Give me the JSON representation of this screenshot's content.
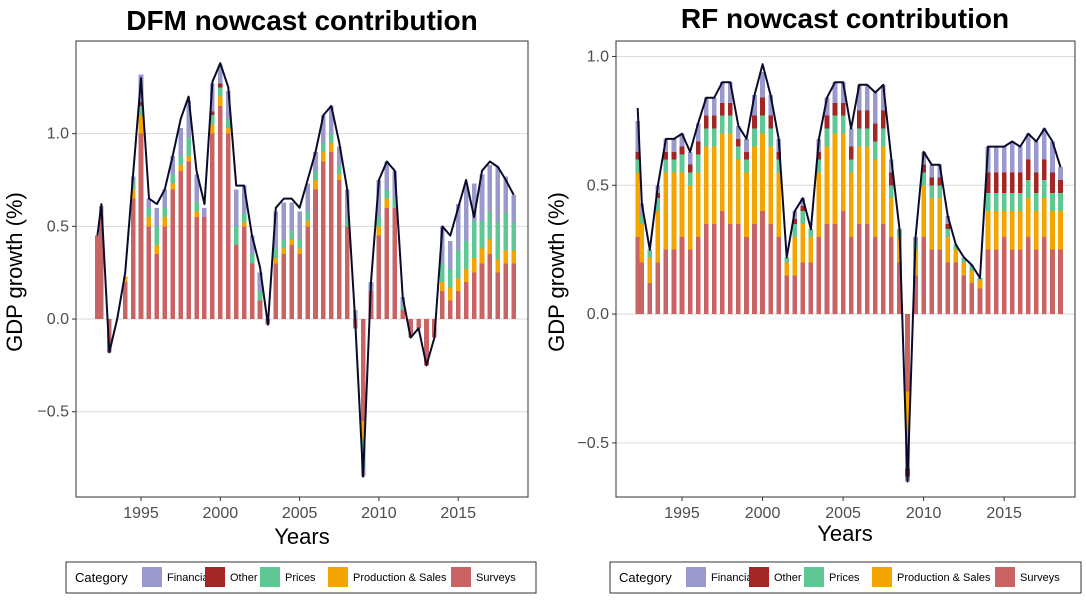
{
  "chart_data": [
    {
      "type": "area",
      "stacked": true,
      "title": "DFM nowcast contribution",
      "xlabel": "Years",
      "ylabel": "GDP growth (%)",
      "xlim": [
        1990.9,
        2019.4
      ],
      "ylim": [
        -0.96,
        1.5
      ],
      "xticks": [
        1995,
        2000,
        2005,
        2010,
        2015
      ],
      "xtick_labels": [
        "1995",
        "2000",
        "2005",
        "2010",
        "2015"
      ],
      "yticks": [
        -0.5,
        0.0,
        0.5,
        1.0
      ],
      "ytick_labels": [
        "−0.5",
        "0.0",
        "0.5",
        "1.0"
      ],
      "grid": true,
      "legend": "bottom",
      "x": [
        1992.25,
        1992.5,
        1993.0,
        1993.5,
        1994.0,
        1994.5,
        1995.0,
        1995.5,
        1996.0,
        1996.5,
        1997.0,
        1997.5,
        1998.0,
        1998.5,
        1999.0,
        1999.5,
        2000.0,
        2000.5,
        2001.0,
        2001.5,
        2002.0,
        2002.5,
        2003.0,
        2003.5,
        2004.0,
        2004.5,
        2005.0,
        2005.5,
        2006.0,
        2006.5,
        2007.0,
        2007.5,
        2008.0,
        2008.5,
        2009.0,
        2009.5,
        2010.0,
        2010.5,
        2011.0,
        2011.5,
        2012.0,
        2012.5,
        2013.0,
        2013.5,
        2014.0,
        2014.5,
        2015.0,
        2015.5,
        2016.0,
        2016.5,
        2017.0,
        2017.5,
        2018.0,
        2018.5
      ],
      "series": [
        {
          "name": "Surveys",
          "color": "#c86464",
          "values": [
            0.45,
            0.55,
            -0.18,
            0.0,
            0.2,
            0.65,
            1.0,
            0.5,
            0.35,
            0.5,
            0.7,
            0.8,
            0.85,
            0.55,
            0.55,
            1.0,
            1.15,
            1.0,
            0.4,
            0.5,
            0.3,
            0.1,
            -0.03,
            0.3,
            0.35,
            0.4,
            0.35,
            0.5,
            0.7,
            0.85,
            0.9,
            0.75,
            0.5,
            -0.05,
            -0.55,
            0.15,
            0.45,
            0.6,
            0.6,
            0.05,
            -0.1,
            -0.05,
            -0.25,
            -0.1,
            0.15,
            0.1,
            0.15,
            0.2,
            0.25,
            0.3,
            0.35,
            0.25,
            0.3,
            0.3
          ]
        },
        {
          "name": "Production & Sales",
          "color": "#f5a500",
          "values": [
            0.0,
            0.03,
            0.0,
            0.0,
            0.03,
            0.05,
            0.1,
            0.05,
            0.05,
            0.05,
            0.03,
            0.03,
            0.03,
            0.03,
            0.0,
            0.05,
            0.05,
            0.03,
            0.0,
            0.02,
            0.0,
            0.0,
            0.0,
            0.03,
            0.03,
            0.03,
            0.03,
            0.03,
            0.05,
            0.05,
            0.05,
            0.03,
            0.0,
            0.0,
            -0.1,
            0.0,
            0.05,
            0.05,
            0.0,
            0.0,
            0.0,
            0.0,
            0.0,
            0.0,
            0.05,
            0.07,
            0.07,
            0.07,
            0.08,
            0.08,
            0.08,
            0.07,
            0.07,
            0.07
          ]
        },
        {
          "name": "Prices",
          "color": "#5dc893",
          "values": [
            0.0,
            0.0,
            0.0,
            0.0,
            0.0,
            0.05,
            0.05,
            0.05,
            0.1,
            0.05,
            0.05,
            0.05,
            0.1,
            0.05,
            0.0,
            0.05,
            0.05,
            0.05,
            0.1,
            0.05,
            0.05,
            0.05,
            0.0,
            0.05,
            0.05,
            0.05,
            0.05,
            0.05,
            0.05,
            0.05,
            0.05,
            0.05,
            0.05,
            0.0,
            -0.15,
            0.0,
            0.05,
            0.05,
            0.05,
            0.02,
            0.0,
            0.0,
            0.0,
            0.0,
            0.1,
            0.1,
            0.15,
            0.15,
            0.2,
            0.15,
            0.15,
            0.2,
            0.2,
            0.15
          ]
        },
        {
          "name": "Other",
          "color": "#a32626",
          "values": [
            0.0,
            0.0,
            0.0,
            0.0,
            0.0,
            0.0,
            0.02,
            0.0,
            0.0,
            0.0,
            0.0,
            0.0,
            0.0,
            0.0,
            0.0,
            0.02,
            0.02,
            0.0,
            0.0,
            0.0,
            0.0,
            0.0,
            0.0,
            0.0,
            0.0,
            0.0,
            0.0,
            0.0,
            0.0,
            0.0,
            0.0,
            0.0,
            0.0,
            0.0,
            0.0,
            0.0,
            0.0,
            0.0,
            0.0,
            0.0,
            0.0,
            0.0,
            0.0,
            0.0,
            0.0,
            0.0,
            0.0,
            0.0,
            0.0,
            0.0,
            0.0,
            0.0,
            0.0,
            0.0
          ]
        },
        {
          "name": "Financial",
          "color": "#9999cc",
          "values": [
            0.0,
            0.03,
            0.0,
            0.0,
            0.0,
            0.02,
            0.15,
            0.05,
            0.1,
            0.1,
            0.1,
            0.15,
            0.2,
            0.15,
            0.05,
            0.15,
            0.1,
            0.15,
            0.2,
            0.15,
            0.1,
            0.1,
            0.0,
            0.2,
            0.2,
            0.15,
            0.15,
            0.15,
            0.1,
            0.15,
            0.15,
            0.1,
            0.15,
            0.05,
            -0.05,
            0.05,
            0.2,
            0.15,
            0.15,
            0.05,
            0.0,
            0.0,
            0.0,
            0.0,
            0.2,
            0.15,
            0.25,
            0.3,
            0.2,
            0.25,
            0.25,
            0.3,
            0.2,
            0.15
          ]
        }
      ],
      "total_line": [
        0.45,
        0.62,
        -0.18,
        0.0,
        0.25,
        0.78,
        1.3,
        0.65,
        0.62,
        0.7,
        0.88,
        1.08,
        1.2,
        0.8,
        0.62,
        1.28,
        1.38,
        1.25,
        0.72,
        0.72,
        0.45,
        0.28,
        -0.03,
        0.6,
        0.65,
        0.65,
        0.6,
        0.75,
        0.9,
        1.1,
        1.15,
        0.95,
        0.7,
        0.0,
        -0.85,
        0.2,
        0.75,
        0.85,
        0.8,
        0.12,
        -0.1,
        -0.05,
        -0.25,
        -0.1,
        0.5,
        0.45,
        0.6,
        0.75,
        0.55,
        0.8,
        0.85,
        0.82,
        0.75,
        0.67
      ]
    },
    {
      "type": "area",
      "stacked": true,
      "title": "RF nowcast contribution",
      "xlabel": "Years",
      "ylabel": "GDP growth (%)",
      "xlim": [
        1990.9,
        2019.4
      ],
      "ylim": [
        -0.71,
        1.06
      ],
      "xticks": [
        1995,
        2000,
        2005,
        2010,
        2015
      ],
      "xtick_labels": [
        "1995",
        "2000",
        "2005",
        "2010",
        "2015"
      ],
      "yticks": [
        -0.5,
        0.0,
        0.5,
        1.0
      ],
      "ytick_labels": [
        "−0.5",
        "0.0",
        "0.5",
        "1.0"
      ],
      "grid": true,
      "legend": "bottom",
      "x": [
        1992.25,
        1992.5,
        1993.0,
        1993.5,
        1994.0,
        1994.5,
        1995.0,
        1995.5,
        1996.0,
        1996.5,
        1997.0,
        1997.5,
        1998.0,
        1998.5,
        1999.0,
        1999.5,
        2000.0,
        2000.5,
        2001.0,
        2001.5,
        2002.0,
        2002.5,
        2003.0,
        2003.5,
        2004.0,
        2004.5,
        2005.0,
        2005.5,
        2006.0,
        2006.5,
        2007.0,
        2007.5,
        2008.0,
        2008.5,
        2009.0,
        2009.5,
        2010.0,
        2010.5,
        2011.0,
        2011.5,
        2012.0,
        2012.5,
        2013.0,
        2013.5,
        2014.0,
        2014.5,
        2015.0,
        2015.5,
        2016.0,
        2016.5,
        2017.0,
        2017.5,
        2018.0,
        2018.5
      ],
      "series": [
        {
          "name": "Surveys",
          "color": "#c86464",
          "values": [
            0.3,
            0.2,
            0.12,
            0.2,
            0.25,
            0.25,
            0.3,
            0.25,
            0.3,
            0.35,
            0.35,
            0.4,
            0.35,
            0.35,
            0.3,
            0.35,
            0.4,
            0.35,
            0.3,
            0.15,
            0.15,
            0.2,
            0.2,
            0.3,
            0.35,
            0.35,
            0.4,
            0.3,
            0.35,
            0.35,
            0.3,
            0.35,
            0.3,
            0.2,
            -0.3,
            0.15,
            0.3,
            0.25,
            0.25,
            0.2,
            0.2,
            0.15,
            0.12,
            0.1,
            0.25,
            0.25,
            0.3,
            0.25,
            0.25,
            0.3,
            0.25,
            0.3,
            0.25,
            0.25
          ]
        },
        {
          "name": "Production & Sales",
          "color": "#f5a500",
          "values": [
            0.25,
            0.15,
            0.1,
            0.2,
            0.3,
            0.3,
            0.25,
            0.25,
            0.25,
            0.3,
            0.3,
            0.3,
            0.35,
            0.25,
            0.25,
            0.3,
            0.3,
            0.3,
            0.25,
            0.05,
            0.15,
            0.15,
            0.1,
            0.25,
            0.3,
            0.35,
            0.3,
            0.25,
            0.3,
            0.3,
            0.3,
            0.3,
            0.15,
            0.1,
            -0.2,
            0.1,
            0.2,
            0.2,
            0.2,
            0.1,
            0.05,
            0.05,
            0.05,
            0.03,
            0.15,
            0.15,
            0.1,
            0.15,
            0.15,
            0.15,
            0.15,
            0.15,
            0.15,
            0.15
          ]
        },
        {
          "name": "Prices",
          "color": "#5dc893",
          "values": [
            0.05,
            0.03,
            0.03,
            0.05,
            0.05,
            0.05,
            0.07,
            0.05,
            0.07,
            0.07,
            0.07,
            0.07,
            0.07,
            0.05,
            0.05,
            0.07,
            0.07,
            0.07,
            0.05,
            0.02,
            0.05,
            0.05,
            0.03,
            0.05,
            0.07,
            0.07,
            0.07,
            0.05,
            0.07,
            0.07,
            0.07,
            0.07,
            0.05,
            0.03,
            -0.1,
            0.03,
            0.05,
            0.05,
            0.05,
            0.03,
            0.02,
            0.02,
            0.02,
            0.01,
            0.07,
            0.07,
            0.07,
            0.07,
            0.07,
            0.07,
            0.07,
            0.07,
            0.07,
            0.07
          ]
        },
        {
          "name": "Other",
          "color": "#a32626",
          "values": [
            0.03,
            0.0,
            0.0,
            0.02,
            0.03,
            0.03,
            0.03,
            0.03,
            0.05,
            0.05,
            0.05,
            0.05,
            0.05,
            0.03,
            0.03,
            0.05,
            0.07,
            0.05,
            0.03,
            0.0,
            0.02,
            0.02,
            0.0,
            0.03,
            0.05,
            0.05,
            0.05,
            0.05,
            0.07,
            0.07,
            0.07,
            0.07,
            0.05,
            0.0,
            -0.03,
            0.0,
            0.03,
            0.03,
            0.03,
            0.02,
            0.0,
            0.0,
            0.0,
            0.0,
            0.08,
            0.08,
            0.08,
            0.08,
            0.08,
            0.08,
            0.08,
            0.08,
            0.08,
            0.05
          ]
        },
        {
          "name": "Financial",
          "color": "#9999cc",
          "values": [
            0.12,
            0.05,
            0.0,
            0.03,
            0.05,
            0.05,
            0.05,
            0.05,
            0.07,
            0.07,
            0.07,
            0.08,
            0.08,
            0.05,
            0.05,
            0.08,
            0.1,
            0.08,
            0.05,
            0.0,
            0.03,
            0.03,
            0.0,
            0.05,
            0.07,
            0.08,
            0.08,
            0.07,
            0.1,
            0.1,
            0.12,
            0.1,
            0.05,
            0.0,
            -0.02,
            0.02,
            0.05,
            0.05,
            0.05,
            0.03,
            0.0,
            0.0,
            0.0,
            0.0,
            0.1,
            0.1,
            0.1,
            0.12,
            0.1,
            0.1,
            0.12,
            0.12,
            0.12,
            0.05
          ]
        }
      ],
      "total_line": [
        0.8,
        0.43,
        0.25,
        0.5,
        0.68,
        0.68,
        0.7,
        0.63,
        0.74,
        0.84,
        0.84,
        0.9,
        0.9,
        0.73,
        0.68,
        0.85,
        0.97,
        0.85,
        0.68,
        0.22,
        0.4,
        0.45,
        0.33,
        0.68,
        0.84,
        0.9,
        0.9,
        0.72,
        0.89,
        0.89,
        0.86,
        0.89,
        0.6,
        0.33,
        -0.65,
        0.3,
        0.63,
        0.58,
        0.58,
        0.38,
        0.27,
        0.22,
        0.19,
        0.14,
        0.65,
        0.65,
        0.65,
        0.67,
        0.65,
        0.7,
        0.67,
        0.72,
        0.67,
        0.57
      ]
    }
  ],
  "legend": {
    "title": "Category",
    "items": [
      {
        "label": "Financial",
        "color": "#9999cc"
      },
      {
        "label": "Other",
        "color": "#a32626"
      },
      {
        "label": "Prices",
        "color": "#5dc893"
      },
      {
        "label": "Production & Sales",
        "color": "#f5a500"
      },
      {
        "label": "Surveys",
        "color": "#c86464"
      }
    ]
  }
}
